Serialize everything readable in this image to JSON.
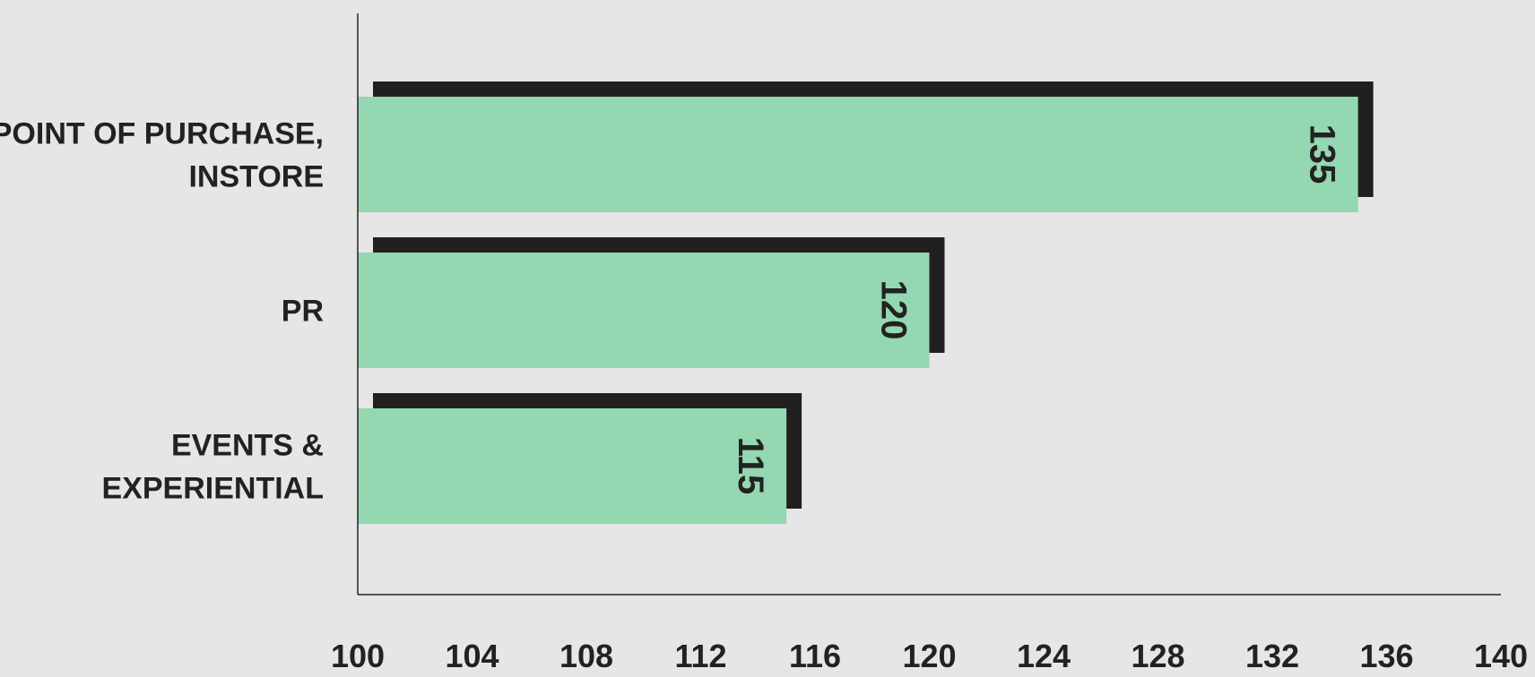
{
  "chart_data": {
    "type": "bar",
    "orientation": "horizontal",
    "categories": [
      [
        "POINT OF PURCHASE,",
        "INSTORE"
      ],
      [
        "PR"
      ],
      [
        "EVENTS & ",
        "EXPERIENTIAL"
      ]
    ],
    "values": [
      135,
      120,
      115
    ],
    "xlim": [
      100,
      140
    ],
    "xticks": [
      "100",
      "104",
      "108",
      "112",
      "116",
      "120",
      "124",
      "128",
      "132",
      "136",
      "140"
    ],
    "data_labels": [
      "135",
      "120",
      "115"
    ],
    "title": "",
    "xlabel": "",
    "ylabel": "",
    "grid": false,
    "colors": {
      "bar": "#93d8b0",
      "shadow": "#202020",
      "axis": "#222222",
      "text": "#222222",
      "background": "#e6e6e6"
    }
  }
}
